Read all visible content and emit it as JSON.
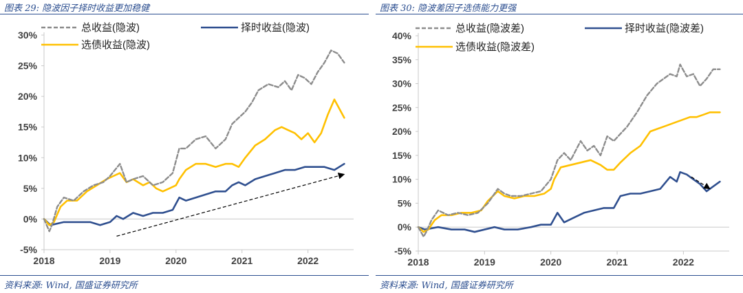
{
  "panels": [
    {
      "title": "图表 29:  隐波因子择时收益更加稳健",
      "source": "资料来源:  Wind, 国盛证券研究所"
    },
    {
      "title": "图表 30:  隐波差因子选债能力更强",
      "source": "资料来源:  Wind, 国盛证券研究所"
    }
  ],
  "colors": {
    "total": "#8c8c8c",
    "timing": "#2f4f8f",
    "selection": "#ffc000",
    "axis": "#c8c8c8",
    "text": "#404040"
  },
  "chart_data": [
    {
      "type": "line",
      "title": "",
      "xlabel": "",
      "ylabel": "",
      "ylim": [
        -0.05,
        0.3
      ],
      "yticks": [
        -0.05,
        0.0,
        0.05,
        0.1,
        0.15,
        0.2,
        0.25,
        0.3
      ],
      "ytick_labels": [
        "-5%",
        "0%",
        "5%",
        "10%",
        "15%",
        "20%",
        "25%",
        "30%"
      ],
      "xlim": [
        2018.0,
        2022.65
      ],
      "xticks": [
        2018,
        2019,
        2020,
        2021,
        2022
      ],
      "xtick_labels": [
        "2018",
        "2019",
        "2020",
        "2021",
        "2022"
      ],
      "grid": false,
      "legend_position": "top",
      "series": [
        {
          "name": "总收益(隐波)",
          "key": "total",
          "style": "dashed",
          "x": [
            2018.0,
            2018.08,
            2018.12,
            2018.2,
            2018.3,
            2018.45,
            2018.6,
            2018.75,
            2018.9,
            2019.0,
            2019.15,
            2019.25,
            2019.35,
            2019.5,
            2019.65,
            2019.8,
            2019.95,
            2020.05,
            2020.15,
            2020.3,
            2020.45,
            2020.6,
            2020.75,
            2020.85,
            2020.95,
            2021.05,
            2021.15,
            2021.25,
            2021.4,
            2021.55,
            2021.65,
            2021.75,
            2021.85,
            2021.95,
            2022.05,
            2022.15,
            2022.25,
            2022.35,
            2022.45,
            2022.55
          ],
          "values": [
            0.0,
            -0.02,
            -0.01,
            0.02,
            0.035,
            0.03,
            0.045,
            0.055,
            0.06,
            0.07,
            0.09,
            0.06,
            0.065,
            0.07,
            0.055,
            0.06,
            0.075,
            0.115,
            0.115,
            0.13,
            0.135,
            0.115,
            0.13,
            0.155,
            0.165,
            0.175,
            0.19,
            0.21,
            0.22,
            0.215,
            0.225,
            0.21,
            0.235,
            0.23,
            0.22,
            0.24,
            0.255,
            0.275,
            0.27,
            0.255
          ]
        },
        {
          "name": "择时收益(隐波)",
          "key": "timing",
          "style": "solid",
          "x": [
            2018.0,
            2018.1,
            2018.3,
            2018.5,
            2018.7,
            2018.85,
            2019.0,
            2019.1,
            2019.2,
            2019.35,
            2019.5,
            2019.65,
            2019.8,
            2019.95,
            2020.05,
            2020.15,
            2020.3,
            2020.45,
            2020.6,
            2020.75,
            2020.85,
            2020.95,
            2021.05,
            2021.2,
            2021.35,
            2021.5,
            2021.65,
            2021.8,
            2021.95,
            2022.1,
            2022.25,
            2022.4,
            2022.55
          ],
          "values": [
            0.0,
            -0.01,
            -0.005,
            -0.005,
            -0.005,
            -0.01,
            -0.005,
            0.005,
            0.0,
            0.01,
            0.005,
            0.01,
            0.01,
            0.015,
            0.035,
            0.03,
            0.035,
            0.04,
            0.045,
            0.045,
            0.055,
            0.06,
            0.055,
            0.065,
            0.07,
            0.075,
            0.08,
            0.08,
            0.085,
            0.085,
            0.085,
            0.08,
            0.09
          ]
        },
        {
          "name": "选债收益(隐波)",
          "key": "selection",
          "style": "solid",
          "x": [
            2018.0,
            2018.08,
            2018.15,
            2018.25,
            2018.35,
            2018.5,
            2018.65,
            2018.8,
            2018.95,
            2019.05,
            2019.15,
            2019.25,
            2019.35,
            2019.5,
            2019.6,
            2019.7,
            2019.8,
            2019.9,
            2020.0,
            2020.05,
            2020.15,
            2020.3,
            2020.45,
            2020.6,
            2020.75,
            2020.85,
            2020.95,
            2021.05,
            2021.2,
            2021.35,
            2021.5,
            2021.6,
            2021.7,
            2021.8,
            2021.9,
            2022.0,
            2022.1,
            2022.2,
            2022.3,
            2022.4,
            2022.45,
            2022.55
          ],
          "values": [
            0.0,
            -0.01,
            -0.005,
            0.02,
            0.03,
            0.03,
            0.045,
            0.055,
            0.065,
            0.07,
            0.075,
            0.06,
            0.065,
            0.055,
            0.06,
            0.05,
            0.045,
            0.05,
            0.055,
            0.065,
            0.08,
            0.09,
            0.09,
            0.085,
            0.09,
            0.09,
            0.085,
            0.1,
            0.12,
            0.13,
            0.145,
            0.15,
            0.145,
            0.14,
            0.13,
            0.14,
            0.125,
            0.14,
            0.17,
            0.195,
            0.185,
            0.165
          ]
        }
      ]
    },
    {
      "type": "line",
      "title": "",
      "xlabel": "",
      "ylabel": "",
      "ylim": [
        -0.05,
        0.4
      ],
      "yticks": [
        -0.05,
        0.0,
        0.05,
        0.1,
        0.15,
        0.2,
        0.25,
        0.3,
        0.35,
        0.4
      ],
      "ytick_labels": [
        "-5%",
        "0%",
        "5%",
        "10%",
        "15%",
        "20%",
        "25%",
        "30%",
        "35%",
        "40%"
      ],
      "xlim": [
        2018.0,
        2022.65
      ],
      "xticks": [
        2018,
        2019,
        2020,
        2021,
        2022
      ],
      "xtick_labels": [
        "2018",
        "2019",
        "2020",
        "2021",
        "2022"
      ],
      "grid": false,
      "legend_position": "top",
      "series": [
        {
          "name": "总收益(隐波差)",
          "key": "total",
          "style": "dashed",
          "x": [
            2018.0,
            2018.08,
            2018.12,
            2018.2,
            2018.3,
            2018.45,
            2018.6,
            2018.75,
            2018.9,
            2019.05,
            2019.2,
            2019.3,
            2019.4,
            2019.55,
            2019.7,
            2019.85,
            2020.0,
            2020.1,
            2020.2,
            2020.3,
            2020.45,
            2020.55,
            2020.65,
            2020.75,
            2020.85,
            2020.95,
            2021.05,
            2021.15,
            2021.3,
            2021.45,
            2021.6,
            2021.7,
            2021.8,
            2021.9,
            2021.95,
            2022.05,
            2022.15,
            2022.25,
            2022.35,
            2022.45,
            2022.55
          ],
          "values": [
            0.0,
            -0.02,
            -0.01,
            0.015,
            0.035,
            0.025,
            0.03,
            0.025,
            0.03,
            0.05,
            0.08,
            0.07,
            0.065,
            0.065,
            0.07,
            0.075,
            0.1,
            0.14,
            0.155,
            0.14,
            0.18,
            0.16,
            0.17,
            0.15,
            0.19,
            0.18,
            0.195,
            0.21,
            0.24,
            0.275,
            0.3,
            0.31,
            0.32,
            0.315,
            0.34,
            0.315,
            0.32,
            0.295,
            0.31,
            0.33,
            0.33
          ]
        },
        {
          "name": "择时收益(隐波差)",
          "key": "timing",
          "style": "solid",
          "x": [
            2018.0,
            2018.1,
            2018.3,
            2018.5,
            2018.7,
            2018.85,
            2019.0,
            2019.15,
            2019.3,
            2019.5,
            2019.7,
            2019.85,
            2020.0,
            2020.1,
            2020.2,
            2020.35,
            2020.5,
            2020.65,
            2020.8,
            2020.95,
            2021.05,
            2021.2,
            2021.35,
            2021.5,
            2021.65,
            2021.8,
            2021.9,
            2021.95,
            2022.05,
            2022.15,
            2022.25,
            2022.35,
            2022.45,
            2022.55
          ],
          "values": [
            0.0,
            -0.005,
            0.0,
            -0.005,
            -0.005,
            -0.01,
            -0.005,
            0.0,
            -0.005,
            -0.005,
            0.0,
            0.005,
            0.005,
            0.03,
            0.01,
            0.02,
            0.03,
            0.035,
            0.04,
            0.04,
            0.065,
            0.07,
            0.07,
            0.075,
            0.08,
            0.105,
            0.095,
            0.115,
            0.11,
            0.1,
            0.09,
            0.075,
            0.085,
            0.095
          ]
        },
        {
          "name": "选债收益(隐波差)",
          "key": "selection",
          "style": "solid",
          "x": [
            2018.0,
            2018.08,
            2018.15,
            2018.25,
            2018.35,
            2018.5,
            2018.65,
            2018.8,
            2018.95,
            2019.05,
            2019.2,
            2019.3,
            2019.45,
            2019.6,
            2019.75,
            2019.9,
            2020.0,
            2020.05,
            2020.15,
            2020.3,
            2020.45,
            2020.6,
            2020.75,
            2020.85,
            2020.95,
            2021.05,
            2021.2,
            2021.35,
            2021.5,
            2021.6,
            2021.7,
            2021.8,
            2021.9,
            2022.0,
            2022.1,
            2022.2,
            2022.3,
            2022.4,
            2022.5,
            2022.55
          ],
          "values": [
            0.0,
            -0.01,
            -0.005,
            0.015,
            0.025,
            0.025,
            0.03,
            0.03,
            0.035,
            0.055,
            0.075,
            0.065,
            0.06,
            0.065,
            0.065,
            0.07,
            0.08,
            0.1,
            0.125,
            0.13,
            0.135,
            0.14,
            0.13,
            0.12,
            0.12,
            0.135,
            0.155,
            0.17,
            0.2,
            0.205,
            0.21,
            0.215,
            0.22,
            0.225,
            0.23,
            0.23,
            0.235,
            0.24,
            0.24,
            0.24
          ]
        }
      ]
    }
  ]
}
